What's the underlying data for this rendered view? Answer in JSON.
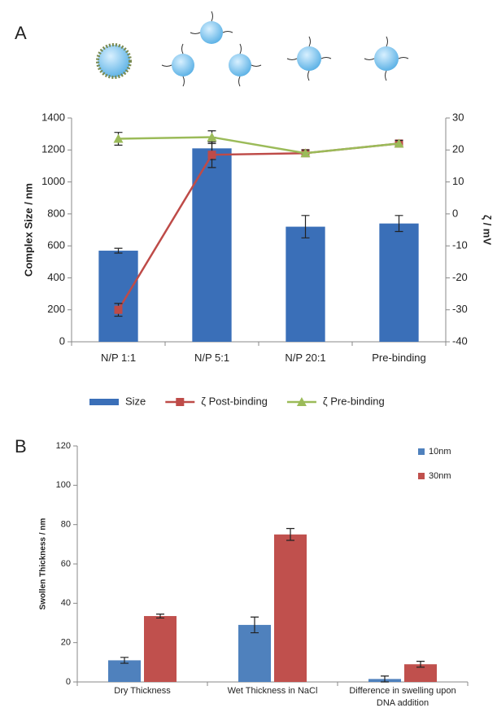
{
  "chart_data": [
    {
      "type": "combo",
      "panel_label": "A",
      "categories": [
        "N/P 1:1",
        "N/P 5:1",
        "N/P 20:1",
        "Pre-binding"
      ],
      "ylabel": "Complex Size / nm",
      "y2label": "ζ / mV",
      "ylim": [
        0,
        1400
      ],
      "yticks": [
        0,
        200,
        400,
        600,
        800,
        1000,
        1200,
        1400
      ],
      "y2lim": [
        -40,
        30
      ],
      "y2ticks": [
        -40,
        -30,
        -20,
        -10,
        0,
        10,
        20,
        30
      ],
      "legend": "bottom",
      "series": [
        {
          "name": "Size",
          "type": "bar",
          "color": "#3a6fb8",
          "values": [
            570,
            1210,
            720,
            740
          ],
          "errors": [
            15,
            70,
            70,
            50
          ]
        },
        {
          "name": "ζ Post-binding",
          "type": "line",
          "axis": "y2",
          "marker": "square",
          "color": "#be4b48",
          "values": [
            -30,
            18.5,
            19,
            22
          ],
          "errors": [
            2,
            4,
            1,
            1
          ]
        },
        {
          "name": "ζ Pre-binding",
          "type": "line",
          "axis": "y2",
          "marker": "triangle",
          "color": "#9bbb59",
          "values": [
            23.5,
            24,
            19,
            22
          ],
          "errors": [
            2,
            2,
            1,
            1
          ]
        }
      ]
    },
    {
      "type": "bar",
      "panel_label": "B",
      "categories": [
        "Dry Thickness",
        "Wet Thickness in NaCl",
        "Difference in swelling upon DNA addition"
      ],
      "ylabel": "Swollen Thickness / nm",
      "ylim": [
        0,
        120
      ],
      "yticks": [
        0,
        20,
        40,
        60,
        80,
        100,
        120
      ],
      "legend": "top right",
      "series": [
        {
          "name": "10nm",
          "color": "#4f81bd",
          "values": [
            11,
            29,
            1.5
          ],
          "errors": [
            1.5,
            4,
            1.5
          ]
        },
        {
          "name": "30nm",
          "color": "#c0504d",
          "values": [
            33.5,
            75,
            9
          ],
          "errors": [
            1,
            3,
            1.5
          ]
        }
      ]
    }
  ]
}
